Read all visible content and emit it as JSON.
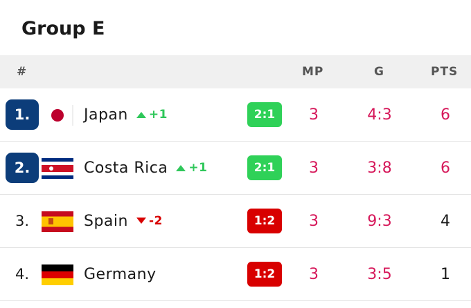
{
  "header": {
    "title": "Group E"
  },
  "table": {
    "columns": [
      "#",
      "MP",
      "G",
      "PTS"
    ],
    "rows": [
      {
        "rank": "1.",
        "qualified": true,
        "team": "Japan",
        "change": "+1",
        "trend": "up",
        "last": "2:1",
        "result": "win",
        "mp": 3,
        "g": "4:3",
        "pts": 6
      },
      {
        "rank": "2.",
        "qualified": true,
        "team": "Costa Rica",
        "change": "+1",
        "trend": "up",
        "last": "2:1",
        "result": "win",
        "mp": 3,
        "g": "3:8",
        "pts": 6
      },
      {
        "rank": "3.",
        "qualified": false,
        "team": "Spain",
        "change": "-2",
        "trend": "down",
        "last": "1:2",
        "result": "loss",
        "mp": 3,
        "g": "9:3",
        "pts": 4
      },
      {
        "rank": "4.",
        "qualified": false,
        "team": "Germany",
        "change": null,
        "trend": null,
        "last": "1:2",
        "result": "loss",
        "mp": 3,
        "g": "3:5",
        "pts": 1
      }
    ]
  }
}
